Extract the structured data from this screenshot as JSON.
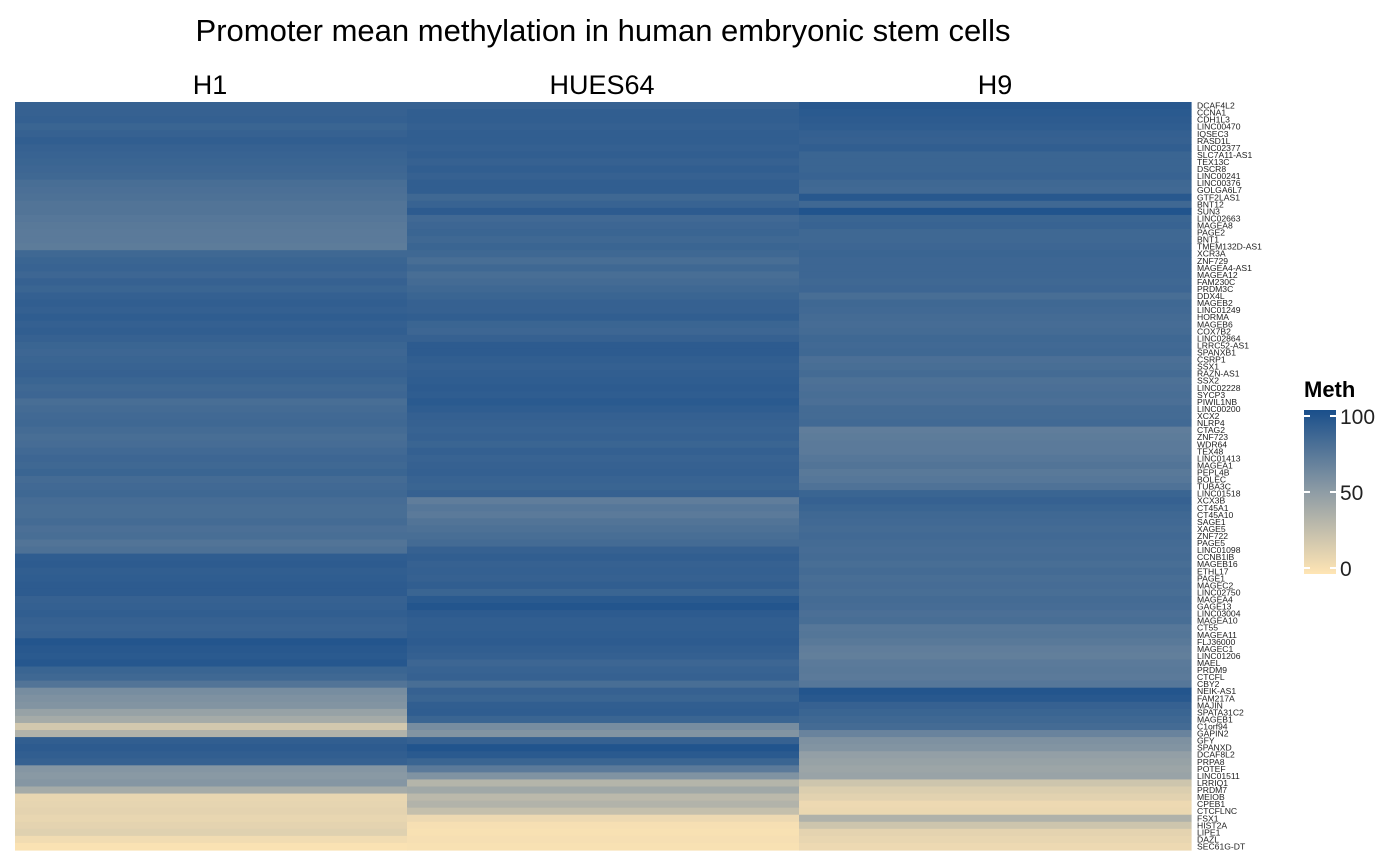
{
  "chart_data": {
    "type": "heatmap",
    "title": "Promoter mean methylation in human embryonic stem cells",
    "columns": [
      "H1",
      "HUES64",
      "H9"
    ],
    "legend": {
      "title": "Meth",
      "ticks": [
        0,
        50,
        100
      ],
      "range": [
        0,
        100
      ],
      "colors": {
        "low": "#FFE5B4",
        "mid": "#8E9CA5",
        "high": "#1A4F8B"
      }
    },
    "rows": [
      "DCAF4L2",
      "CCNA1",
      "CDH1L3",
      "LINC00470",
      "IQSEC3",
      "RASD1L",
      "LINC02377",
      "SLC7A11-AS1",
      "TEX13C",
      "DSCR8",
      "LINC00241",
      "LINC00376",
      "GOLGA6L7",
      "GTF2LAS1",
      "BNT12",
      "SUN3",
      "LINC02663",
      "MAGEA8",
      "PAGE2",
      "BNT1",
      "TMEM132D-AS1",
      "XCR3A",
      "ZNF729",
      "MAGEA4-AS1",
      "MAGEA12",
      "FAM230C",
      "PRDM3C",
      "DDX4L",
      "MAGEB2",
      "LINC01249",
      "HORMA",
      "MAGEB6",
      "COX7B2",
      "LINC02864",
      "LRRC52-AS1",
      "SPANXB1",
      "CSRP1",
      "SSX1",
      "RAZN-AS1",
      "SSX2",
      "LINC02228",
      "SYCP3",
      "PIWIL1NB",
      "LINC00200",
      "XCX2",
      "NLRP4",
      "CTAG2",
      "ZNF723",
      "WDR64",
      "TEX48",
      "LINC01413",
      "MAGEA1",
      "PEPL4B",
      "BOLEC",
      "TUBA3C",
      "LINC01518",
      "XCX3B",
      "CT45A1",
      "CT45A10",
      "SAGE1",
      "XAGE5",
      "ZNF722",
      "PAGE5",
      "LINC01098",
      "CCNB1IB",
      "MAGEB16",
      "ETHL17",
      "PAGE1",
      "MAGEC2",
      "LINC02750",
      "MAGEA4",
      "GAGE13",
      "LINC03004",
      "MAGEA10",
      "CT55",
      "MAGEA11",
      "FLJ36000",
      "MAGEC1",
      "LINC01206",
      "MAEL",
      "PRDM9",
      "CTCFL",
      "CBY2",
      "NEIK-AS1",
      "FAM217A",
      "MAJIN",
      "SPATA31C2",
      "MAGEB1",
      "C1orf94",
      "GAPIN2",
      "GFY",
      "SPANXD",
      "DCAF8L2",
      "PRPA8",
      "POTEF",
      "LINC01511",
      "LRRIQ1",
      "PRDM7",
      "MEIOB",
      "CPEB1",
      "CTCFLNC",
      "FSX1",
      "HIST2A",
      "LIPE1",
      "DAZL",
      "SEC61G-DT"
    ],
    "values": [
      [
        88,
        88,
        94
      ],
      [
        88,
        90,
        93
      ],
      [
        89,
        90,
        92
      ],
      [
        86,
        89,
        91
      ],
      [
        88,
        90,
        89
      ],
      [
        90,
        90,
        88
      ],
      [
        88,
        89,
        90
      ],
      [
        87,
        90,
        86
      ],
      [
        86,
        88,
        86
      ],
      [
        85,
        90,
        86
      ],
      [
        84,
        88,
        87
      ],
      [
        80,
        90,
        84
      ],
      [
        79,
        90,
        83
      ],
      [
        78,
        84,
        94
      ],
      [
        76,
        87,
        84
      ],
      [
        76,
        92,
        97
      ],
      [
        74,
        83,
        86
      ],
      [
        73,
        85,
        87
      ],
      [
        72,
        86,
        84
      ],
      [
        72,
        84,
        84
      ],
      [
        71,
        86,
        85
      ],
      [
        84,
        84,
        86
      ],
      [
        86,
        80,
        85
      ],
      [
        87,
        84,
        85
      ],
      [
        85,
        80,
        85
      ],
      [
        88,
        82,
        84
      ],
      [
        86,
        84,
        85
      ],
      [
        89,
        86,
        80
      ],
      [
        90,
        88,
        84
      ],
      [
        89,
        88,
        83
      ],
      [
        91,
        90,
        82
      ],
      [
        89,
        86,
        81
      ],
      [
        90,
        85,
        82
      ],
      [
        88,
        88,
        84
      ],
      [
        86,
        92,
        83
      ],
      [
        85,
        92,
        84
      ],
      [
        86,
        90,
        79
      ],
      [
        87,
        89,
        80
      ],
      [
        88,
        90,
        82
      ],
      [
        86,
        91,
        78
      ],
      [
        84,
        92,
        79
      ],
      [
        85,
        91,
        80
      ],
      [
        80,
        93,
        79
      ],
      [
        82,
        91,
        82
      ],
      [
        83,
        89,
        82
      ],
      [
        84,
        88,
        83
      ],
      [
        82,
        87,
        70
      ],
      [
        80,
        88,
        71
      ],
      [
        81,
        86,
        72
      ],
      [
        83,
        89,
        72
      ],
      [
        85,
        87,
        74
      ],
      [
        84,
        88,
        76
      ],
      [
        86,
        89,
        73
      ],
      [
        82,
        87,
        74
      ],
      [
        83,
        86,
        77
      ],
      [
        84,
        88,
        86
      ],
      [
        81,
        70,
        88
      ],
      [
        80,
        74,
        86
      ],
      [
        80,
        72,
        84
      ],
      [
        82,
        76,
        83
      ],
      [
        79,
        78,
        82
      ],
      [
        80,
        80,
        83
      ],
      [
        76,
        82,
        82
      ],
      [
        78,
        88,
        81
      ],
      [
        91,
        90,
        82
      ],
      [
        92,
        88,
        80
      ],
      [
        90,
        89,
        82
      ],
      [
        91,
        88,
        80
      ],
      [
        92,
        90,
        81
      ],
      [
        92,
        86,
        80
      ],
      [
        88,
        93,
        82
      ],
      [
        89,
        96,
        81
      ],
      [
        90,
        92,
        79
      ],
      [
        88,
        90,
        80
      ],
      [
        87,
        90,
        74
      ],
      [
        88,
        91,
        75
      ],
      [
        96,
        92,
        73
      ],
      [
        94,
        90,
        70
      ],
      [
        93,
        89,
        69
      ],
      [
        95,
        85,
        72
      ],
      [
        86,
        87,
        73
      ],
      [
        84,
        88,
        72
      ],
      [
        76,
        80,
        74
      ],
      [
        60,
        88,
        96
      ],
      [
        57,
        86,
        94
      ],
      [
        55,
        90,
        88
      ],
      [
        46,
        91,
        86
      ],
      [
        40,
        86,
        84
      ],
      [
        20,
        60,
        82
      ],
      [
        35,
        55,
        66
      ],
      [
        90,
        88,
        57
      ],
      [
        92,
        97,
        55
      ],
      [
        90,
        93,
        48
      ],
      [
        88,
        86,
        46
      ],
      [
        54,
        72,
        44
      ],
      [
        52,
        56,
        45
      ],
      [
        54,
        33,
        22
      ],
      [
        40,
        42,
        16
      ],
      [
        10,
        30,
        13
      ],
      [
        11,
        34,
        8
      ],
      [
        12,
        26,
        9
      ],
      [
        10,
        8,
        35
      ],
      [
        12,
        4,
        22
      ],
      [
        14,
        3,
        12
      ],
      [
        6,
        4,
        10
      ],
      [
        2,
        3,
        8
      ]
    ]
  }
}
